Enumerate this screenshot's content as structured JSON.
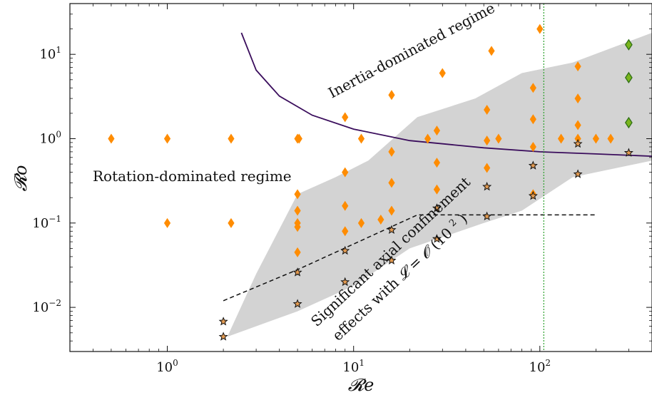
{
  "chart_data": {
    "type": "scatter",
    "title": "",
    "xlabel": "𝓡e",
    "ylabel": "𝓡o",
    "xscale": "log",
    "yscale": "log",
    "xlim": [
      0.3,
      400
    ],
    "ylim": [
      0.003,
      40
    ],
    "grid": false,
    "x_ticks": [
      {
        "value": 1,
        "base": "10",
        "exp": "0"
      },
      {
        "value": 10,
        "base": "10",
        "exp": "1"
      },
      {
        "value": 100,
        "base": "10",
        "exp": "2"
      }
    ],
    "y_ticks": [
      {
        "value": 0.01,
        "base": "10",
        "exp": "−2"
      },
      {
        "value": 0.1,
        "base": "10",
        "exp": "−1"
      },
      {
        "value": 1,
        "base": "10",
        "exp": "0"
      },
      {
        "value": 10,
        "base": "10",
        "exp": "1"
      }
    ],
    "shaded_region": {
      "color": "#d3d3d3",
      "points": [
        [
          2.1,
          0.0045
        ],
        [
          3.0,
          0.025
        ],
        [
          5.0,
          0.22
        ],
        [
          8.0,
          0.35
        ],
        [
          12.0,
          0.55
        ],
        [
          22.0,
          1.8
        ],
        [
          45.0,
          3.0
        ],
        [
          80.0,
          6.0
        ],
        [
          150.0,
          8.0
        ],
        [
          400.0,
          18.0
        ],
        [
          400.0,
          0.55
        ],
        [
          150.0,
          0.35
        ],
        [
          80.0,
          0.14
        ],
        [
          50.0,
          0.1
        ],
        [
          20.0,
          0.05
        ],
        [
          10.0,
          0.018
        ],
        [
          5.0,
          0.009
        ]
      ]
    },
    "curve": {
      "color": "#3a0d5c",
      "points": [
        [
          2.5,
          18
        ],
        [
          3.0,
          6.5
        ],
        [
          4.0,
          3.2
        ],
        [
          6.0,
          1.9
        ],
        [
          10.0,
          1.3
        ],
        [
          20.0,
          0.95
        ],
        [
          50.0,
          0.78
        ],
        [
          100.0,
          0.7
        ],
        [
          200.0,
          0.66
        ],
        [
          400.0,
          0.62
        ]
      ]
    },
    "dashed_line": {
      "color": "#111111",
      "points": [
        [
          2.0,
          0.012
        ],
        [
          5.0,
          0.028
        ],
        [
          22.0,
          0.125
        ],
        [
          200.0,
          0.125
        ]
      ]
    },
    "vertical_line": {
      "x": 105,
      "color": "#2ca02c"
    },
    "series": [
      {
        "marker": "diamond",
        "color": "#ff8c00",
        "points": [
          [
            0.5,
            1.0
          ],
          [
            1.0,
            1.0
          ],
          [
            2.2,
            1.0
          ],
          [
            5.0,
            1.0
          ],
          [
            5.1,
            1.0
          ],
          [
            11.0,
            1.0
          ],
          [
            1.0,
            0.1
          ],
          [
            2.2,
            0.1
          ],
          [
            5.0,
            0.1
          ],
          [
            5.0,
            0.09
          ],
          [
            11.0,
            0.1
          ],
          [
            14.0,
            0.11
          ],
          [
            5.0,
            0.22
          ],
          [
            5.0,
            0.14
          ],
          [
            5.0,
            0.045
          ],
          [
            9.0,
            0.08
          ],
          [
            9.0,
            0.16
          ],
          [
            9.0,
            0.4
          ],
          [
            9.0,
            1.8
          ],
          [
            16.0,
            0.14
          ],
          [
            16.0,
            0.3
          ],
          [
            16.0,
            0.7
          ],
          [
            16.0,
            3.3
          ],
          [
            25.0,
            1.0
          ],
          [
            28.0,
            0.25
          ],
          [
            28.0,
            0.52
          ],
          [
            28.0,
            1.25
          ],
          [
            30.0,
            6.0
          ],
          [
            52.0,
            0.45
          ],
          [
            52.0,
            0.95
          ],
          [
            52.0,
            2.2
          ],
          [
            55.0,
            11.0
          ],
          [
            60.0,
            1.0
          ],
          [
            92.0,
            0.8
          ],
          [
            92.0,
            1.7
          ],
          [
            92.0,
            4.0
          ],
          [
            92.0,
            0.22
          ],
          [
            100.0,
            20.0
          ],
          [
            130.0,
            1.0
          ],
          [
            160.0,
            1.0
          ],
          [
            160.0,
            1.45
          ],
          [
            160.0,
            3.0
          ],
          [
            160.0,
            7.2
          ],
          [
            200.0,
            1.0
          ],
          [
            240.0,
            1.0
          ]
        ]
      },
      {
        "marker": "diamond",
        "color": "#7ab51d",
        "points": [
          [
            300.0,
            13.0
          ],
          [
            300.0,
            5.3
          ],
          [
            300.0,
            1.55
          ]
        ]
      },
      {
        "marker": "star",
        "color": "#e39b52",
        "points": [
          [
            2.0,
            0.0068
          ],
          [
            2.0,
            0.0045
          ],
          [
            5.0,
            0.026
          ],
          [
            5.0,
            0.011
          ],
          [
            9.0,
            0.047
          ],
          [
            9.0,
            0.02
          ],
          [
            16.0,
            0.083
          ],
          [
            16.0,
            0.036
          ],
          [
            28.0,
            0.15
          ],
          [
            28.0,
            0.065
          ],
          [
            52.0,
            0.27
          ],
          [
            52.0,
            0.12
          ],
          [
            92.0,
            0.48
          ],
          [
            92.0,
            0.21
          ],
          [
            160.0,
            0.87
          ],
          [
            160.0,
            0.38
          ],
          [
            300.0,
            0.68
          ]
        ]
      }
    ],
    "annotations": {
      "inertia": "Inertia-dominated regime",
      "rotation": "Rotation-dominated regime",
      "confinement_line1": "Significant axial confinement",
      "confinement_line2_prefix": "effects with ",
      "confinement_script_l": "𝓛",
      "confinement_equals": " = ",
      "confinement_script_o": "𝓞",
      "confinement_value": "(10",
      "confinement_exponent": "2",
      "confinement_close": ")"
    }
  }
}
